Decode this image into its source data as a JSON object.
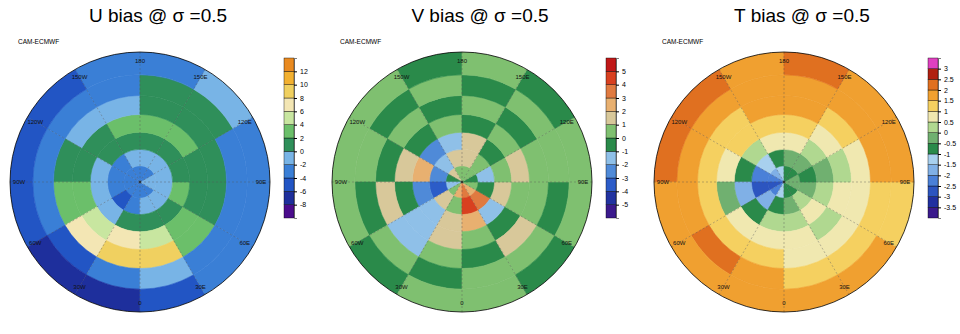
{
  "chart_data": [
    {
      "type": "heatmap",
      "title": "U bias @ σ =0.5",
      "subtitle": "CAM-ECMWF",
      "x": [
        -165,
        -135,
        -105,
        -75,
        -45,
        -15,
        15,
        45,
        75,
        105,
        135,
        165
      ],
      "y": [
        85,
        75,
        65,
        55,
        45,
        35,
        25
      ],
      "xlim": [
        -180,
        180
      ],
      "ylim": [
        20,
        90
      ],
      "xticks": [
        180,
        {
          "value": 150,
          "label": "150E"
        },
        {
          "value": 120,
          "label": "120E"
        },
        {
          "value": 90,
          "label": "90E"
        },
        {
          "value": 60,
          "label": "60E"
        },
        {
          "value": 30,
          "label": "30E"
        },
        0,
        {
          "value": -30,
          "label": "30W"
        },
        {
          "value": -60,
          "label": "60W"
        },
        {
          "value": -90,
          "label": "90W"
        },
        {
          "value": -120,
          "label": "120W"
        },
        {
          "value": -150,
          "label": "150W"
        }
      ],
      "cells": [
        [
          -3,
          -3,
          -4,
          -4,
          -4,
          -3,
          -3,
          -3,
          -2,
          -2,
          -3,
          -3
        ],
        [
          -2,
          -3,
          -4,
          -4,
          -5,
          -3,
          -2,
          -2,
          -1,
          -1,
          -1,
          -2
        ],
        [
          1,
          0,
          -1,
          -2,
          -2,
          0,
          1,
          1,
          2,
          1,
          1,
          1
        ],
        [
          2,
          1,
          1,
          2,
          4,
          6,
          4,
          2,
          1,
          1,
          2,
          2
        ],
        [
          -1,
          -2,
          0,
          2,
          6,
          9,
          8,
          3,
          0,
          0,
          1,
          1
        ],
        [
          -3,
          -4,
          -3,
          -4,
          -6,
          -3,
          -2,
          -3,
          -4,
          -3,
          1,
          0
        ],
        [
          -4,
          -5,
          -5,
          -6,
          -8,
          -7,
          -5,
          -4,
          -4,
          -3,
          -2,
          -3
        ]
      ],
      "colorbar": {
        "range": [
          -10,
          14
        ],
        "ticks": [
          -8,
          -6,
          -4,
          -2,
          0,
          2,
          4,
          6,
          8,
          10,
          12
        ],
        "colors": [
          "#4b0c8c",
          "#1e2f9c",
          "#2255c4",
          "#3a7fd6",
          "#78b4e6",
          "#2f8f5a",
          "#6bbf6a",
          "#c8e6a0",
          "#f3e6b4",
          "#f0d060",
          "#f2b030",
          "#e98a20"
        ]
      }
    },
    {
      "type": "heatmap",
      "title": "V bias @ σ =0.5",
      "subtitle": "CAM-ECMWF",
      "x": [
        -165,
        -135,
        -105,
        -75,
        -45,
        -15,
        15,
        45,
        75,
        105,
        135,
        165
      ],
      "y": [
        85,
        75,
        65,
        55,
        45,
        35,
        25
      ],
      "xlim": [
        -180,
        180
      ],
      "ylim": [
        20,
        90
      ],
      "xticks": [
        180,
        {
          "value": 150,
          "label": "150E"
        },
        {
          "value": 120,
          "label": "120E"
        },
        {
          "value": 90,
          "label": "90E"
        },
        {
          "value": 60,
          "label": "60E"
        },
        {
          "value": 30,
          "label": "30E"
        },
        0,
        {
          "value": -30,
          "label": "30W"
        },
        {
          "value": -60,
          "label": "60W"
        },
        {
          "value": -90,
          "label": "90W"
        },
        {
          "value": -120,
          "label": "120W"
        },
        {
          "value": -150,
          "label": "150W"
        }
      ],
      "cells": [
        [
          0,
          1,
          -1,
          -2,
          0,
          2,
          3,
          2,
          0,
          -1,
          0,
          0
        ],
        [
          1,
          -2,
          -3,
          -4,
          1,
          0,
          4,
          3,
          -1,
          -2,
          0,
          1
        ],
        [
          -2,
          -3,
          2,
          -3,
          -2,
          1,
          2,
          -2,
          1,
          0,
          -1,
          1
        ],
        [
          0,
          -1,
          1,
          -1,
          -2,
          1,
          0,
          -1,
          0,
          1,
          0,
          -1
        ],
        [
          -1,
          0,
          -1,
          1,
          -2,
          0,
          -1,
          1,
          0,
          0,
          -1,
          0
        ],
        [
          0,
          -1,
          0,
          -1,
          0,
          -1,
          0,
          0,
          -1,
          0,
          0,
          -1
        ],
        [
          -1,
          0,
          0,
          0,
          -1,
          0,
          0,
          -1,
          0,
          0,
          -1,
          0
        ]
      ],
      "colorbar": {
        "range": [
          -6,
          6
        ],
        "ticks": [
          -5,
          -4,
          -3,
          -2,
          -1,
          0,
          1,
          2,
          3,
          4,
          5
        ],
        "colors": [
          "#3b1a8c",
          "#2233a0",
          "#2c5cc8",
          "#4f8ad8",
          "#8fc0e8",
          "#2a8a4a",
          "#7fc070",
          "#d8c89a",
          "#e8b070",
          "#e07a40",
          "#d84020",
          "#c01818"
        ]
      }
    },
    {
      "type": "heatmap",
      "title": "T bias @ σ =0.5",
      "subtitle": "CAM-ECMWF",
      "x": [
        -165,
        -135,
        -105,
        -75,
        -45,
        -15,
        15,
        45,
        75,
        105,
        135,
        165
      ],
      "y": [
        85,
        75,
        65,
        55,
        45,
        35,
        25
      ],
      "xlim": [
        -180,
        180
      ],
      "ylim": [
        20,
        90
      ],
      "xticks": [
        180,
        {
          "value": 150,
          "label": "150E"
        },
        {
          "value": 120,
          "label": "120E"
        },
        {
          "value": 90,
          "label": "90E"
        },
        {
          "value": 60,
          "label": "60E"
        },
        {
          "value": 30,
          "label": "30E"
        },
        0,
        {
          "value": -30,
          "label": "30W"
        },
        {
          "value": -60,
          "label": "60W"
        },
        {
          "value": -90,
          "label": "90W"
        },
        {
          "value": -120,
          "label": "120W"
        },
        {
          "value": -150,
          "label": "150W"
        }
      ],
      "cells": [
        [
          -1.5,
          -2,
          -2.5,
          -3,
          -2.5,
          -1.5,
          -1,
          -1,
          -0.5,
          -0.5,
          -1,
          -1
        ],
        [
          -1,
          -1.5,
          -2.5,
          -3,
          -2,
          -1,
          -0.5,
          0,
          -0.5,
          -1,
          -0.5,
          -0.5
        ],
        [
          0.5,
          0,
          -1,
          -2,
          -1,
          0,
          0,
          0.5,
          0,
          -0.5,
          0,
          0.5
        ],
        [
          1,
          1,
          0.5,
          -0.5,
          0.5,
          0.5,
          0.5,
          0,
          0.5,
          0,
          0.5,
          1
        ],
        [
          1.5,
          1,
          1,
          1,
          1,
          1,
          0.5,
          0.5,
          0.5,
          0.5,
          1,
          1.5
        ],
        [
          1.5,
          1.5,
          1.5,
          1.5,
          2,
          1.5,
          1,
          1,
          1,
          1.5,
          1.5,
          1.5
        ],
        [
          1.5,
          2,
          2,
          1.5,
          1.5,
          1.5,
          1.5,
          1.5,
          1,
          1.5,
          1.5,
          2
        ]
      ],
      "colorbar": {
        "range": [
          -4,
          3.5
        ],
        "ticks": [
          -3.5,
          -3,
          -2.5,
          -2,
          -1.5,
          -1,
          -0.5,
          0,
          0.5,
          1,
          1.5,
          2,
          2.5,
          3
        ],
        "colors": [
          "#3a1a8c",
          "#2030a0",
          "#2c55c0",
          "#4a80d8",
          "#80b0e6",
          "#a8d0ee",
          "#2a8a4a",
          "#70b070",
          "#b0d890",
          "#f0e8b0",
          "#f5d060",
          "#f0a030",
          "#e07020",
          "#b02010",
          "#e040c0"
        ]
      }
    }
  ]
}
